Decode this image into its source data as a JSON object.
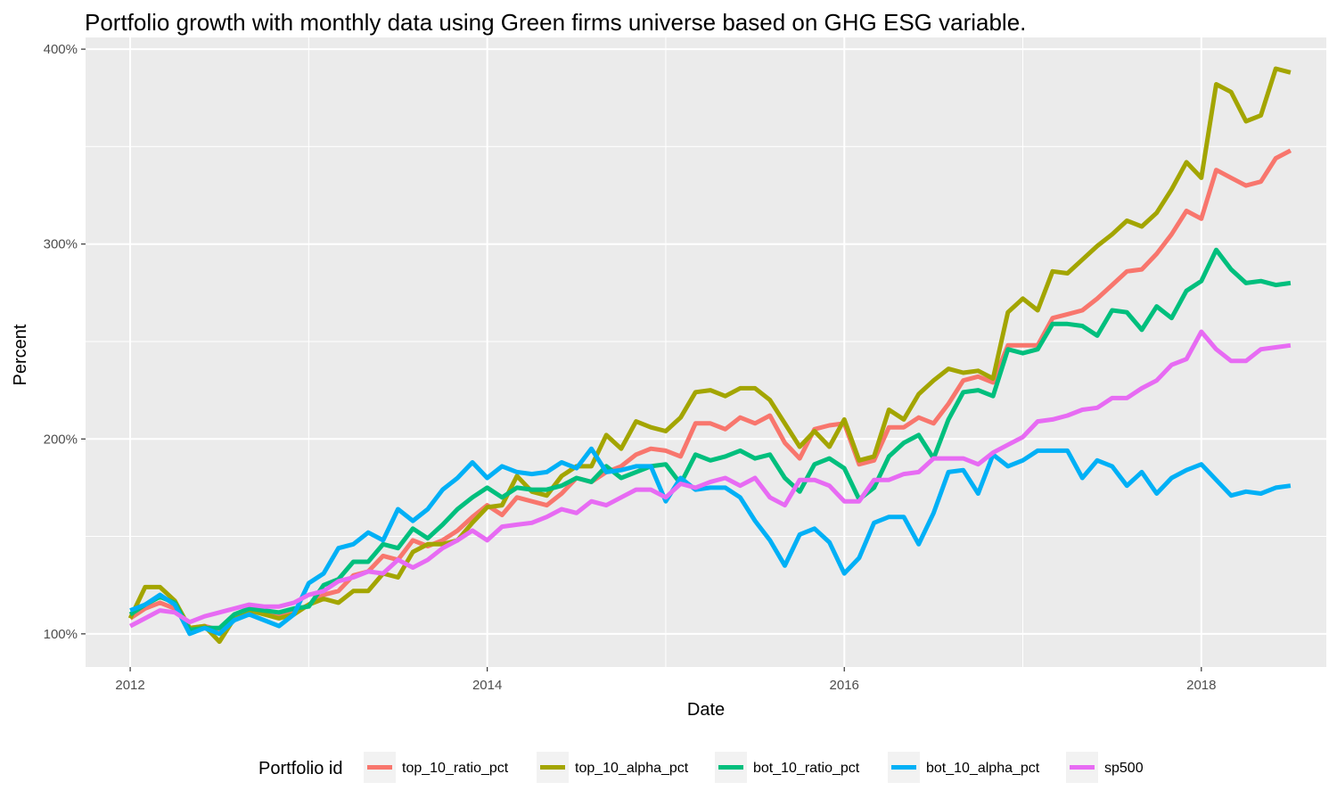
{
  "chart_data": {
    "type": "line",
    "title": "Portfolio growth with monthly data using Green firms universe based on GHG ESG variable.",
    "xlabel": "Date",
    "ylabel": "Percent",
    "xlim": [
      2011.75,
      2018.7
    ],
    "ylim": [
      83,
      406
    ],
    "x_ticks": [
      {
        "value": 2012,
        "label": "2012"
      },
      {
        "value": 2014,
        "label": "2014"
      },
      {
        "value": 2016,
        "label": "2016"
      },
      {
        "value": 2018,
        "label": "2018"
      }
    ],
    "y_ticks": [
      {
        "value": 100,
        "label": "100%"
      },
      {
        "value": 200,
        "label": "200%"
      },
      {
        "value": 300,
        "label": "300%"
      },
      {
        "value": 400,
        "label": "400%"
      }
    ],
    "grid": true,
    "legend": {
      "title": "Portfolio id",
      "position": "bottom"
    },
    "x_start": 2012.0,
    "x_step_months": 1,
    "series": [
      {
        "name": "top_10_ratio_pct",
        "color": "#F8766D",
        "values": [
          108,
          113,
          116,
          113,
          103,
          104,
          102,
          107,
          111,
          112,
          110,
          111,
          115,
          120,
          122,
          130,
          132,
          140,
          138,
          148,
          145,
          148,
          153,
          160,
          166,
          161,
          170,
          168,
          166,
          172,
          180,
          178,
          183,
          186,
          192,
          195,
          194,
          191,
          208,
          208,
          205,
          211,
          208,
          212,
          198,
          190,
          205,
          207,
          208,
          187,
          189,
          206,
          206,
          211,
          208,
          218,
          230,
          232,
          229,
          248,
          248,
          248,
          262,
          264,
          266,
          272,
          279,
          286,
          287,
          295,
          305,
          317,
          313,
          338,
          334,
          330,
          332,
          344,
          348
        ]
      },
      {
        "name": "top_10_alpha_pct",
        "color": "#A3A500",
        "values": [
          108,
          124,
          124,
          117,
          103,
          104,
          96,
          108,
          112,
          110,
          108,
          110,
          115,
          118,
          116,
          122,
          122,
          131,
          129,
          142,
          146,
          146,
          148,
          157,
          165,
          166,
          181,
          173,
          171,
          181,
          186,
          186,
          202,
          195,
          209,
          206,
          204,
          211,
          224,
          225,
          222,
          226,
          226,
          220,
          208,
          196,
          204,
          196,
          210,
          189,
          191,
          215,
          210,
          223,
          230,
          236,
          234,
          235,
          231,
          265,
          272,
          266,
          286,
          285,
          292,
          299,
          305,
          312,
          309,
          316,
          328,
          342,
          334,
          382,
          378,
          363,
          366,
          390,
          388
        ]
      },
      {
        "name": "bot_10_ratio_pct",
        "color": "#00BF7D",
        "values": [
          110,
          115,
          119,
          116,
          102,
          103,
          103,
          110,
          113,
          112,
          111,
          113,
          114,
          125,
          128,
          137,
          137,
          146,
          144,
          154,
          149,
          156,
          164,
          170,
          175,
          170,
          175,
          174,
          174,
          176,
          180,
          178,
          186,
          180,
          183,
          186,
          187,
          177,
          192,
          189,
          191,
          194,
          190,
          192,
          180,
          173,
          187,
          190,
          185,
          169,
          175,
          191,
          198,
          202,
          190,
          210,
          224,
          225,
          222,
          246,
          244,
          246,
          259,
          259,
          258,
          253,
          266,
          265,
          256,
          268,
          262,
          276,
          281,
          297,
          287,
          280,
          281,
          279,
          280
        ]
      },
      {
        "name": "bot_10_alpha_pct",
        "color": "#00B0F6",
        "values": [
          112,
          115,
          120,
          115,
          100,
          103,
          100,
          107,
          110,
          107,
          104,
          110,
          126,
          131,
          144,
          146,
          152,
          148,
          164,
          158,
          164,
          174,
          180,
          188,
          180,
          186,
          183,
          182,
          183,
          188,
          185,
          195,
          183,
          184,
          186,
          186,
          168,
          180,
          174,
          175,
          175,
          170,
          158,
          148,
          135,
          151,
          154,
          147,
          131,
          139,
          157,
          160,
          160,
          146,
          162,
          183,
          184,
          172,
          192,
          186,
          189,
          194,
          194,
          194,
          180,
          189,
          186,
          176,
          183,
          172,
          180,
          184,
          187,
          179,
          171,
          173,
          172,
          175,
          176
        ]
      },
      {
        "name": "sp500",
        "color": "#E76BF3",
        "values": [
          104,
          108,
          112,
          111,
          106,
          109,
          111,
          113,
          115,
          114,
          114,
          116,
          120,
          122,
          127,
          129,
          132,
          131,
          138,
          134,
          138,
          144,
          148,
          153,
          148,
          155,
          156,
          157,
          160,
          164,
          162,
          168,
          166,
          170,
          174,
          174,
          170,
          177,
          175,
          178,
          180,
          176,
          180,
          170,
          166,
          179,
          179,
          176,
          168,
          168,
          179,
          179,
          182,
          183,
          190,
          190,
          190,
          187,
          193,
          197,
          201,
          209,
          210,
          212,
          215,
          216,
          221,
          221,
          226,
          230,
          238,
          241,
          255,
          246,
          240,
          240,
          246,
          247,
          248
        ]
      }
    ]
  }
}
